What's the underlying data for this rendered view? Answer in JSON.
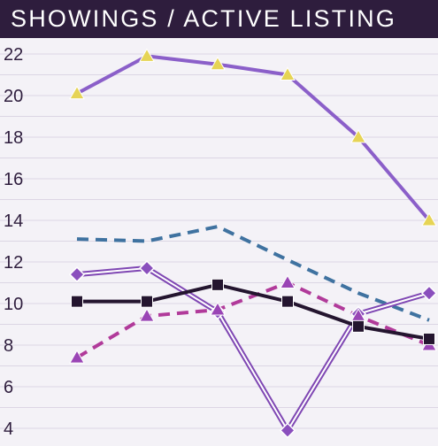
{
  "title": "SHOWINGS / ACTIVE LISTING",
  "chart_data": {
    "type": "line",
    "title": "SHOWINGS / ACTIVE LISTING",
    "xlabel": "",
    "ylabel": "",
    "ylim": [
      3.3,
      23.5
    ],
    "yticks": [
      4,
      6,
      8,
      10,
      12,
      14,
      16,
      18,
      20,
      22
    ],
    "grid": true,
    "x": [
      1,
      2,
      3,
      4,
      5,
      6
    ],
    "series": [
      {
        "values": [
          20.1,
          21.9,
          21.5,
          21.0,
          18.0,
          14.0
        ],
        "color": "#8b5fc9",
        "marker": "triangle",
        "marker_color": "#e6d455",
        "style": "solid"
      },
      {
        "values": [
          13.1,
          13.0,
          13.7,
          12.1,
          10.5,
          9.2
        ],
        "color": "#3f72a0",
        "marker": "none",
        "style": "dashed"
      },
      {
        "values": [
          11.4,
          11.7,
          9.6,
          3.9,
          9.5,
          10.5
        ],
        "color": "#7f47b3",
        "marker": "diamond",
        "marker_color": "#8a4fbd",
        "style": "double"
      },
      {
        "values": [
          7.4,
          9.4,
          9.7,
          11.0,
          9.4,
          8.0
        ],
        "color": "#b13a9a",
        "marker": "triangle",
        "marker_color": "#9a45b5",
        "style": "dashed"
      },
      {
        "values": [
          10.1,
          10.1,
          10.9,
          10.1,
          8.9,
          8.3
        ],
        "color": "#24152f",
        "marker": "square",
        "marker_color": "#24152f",
        "style": "solid"
      }
    ]
  }
}
